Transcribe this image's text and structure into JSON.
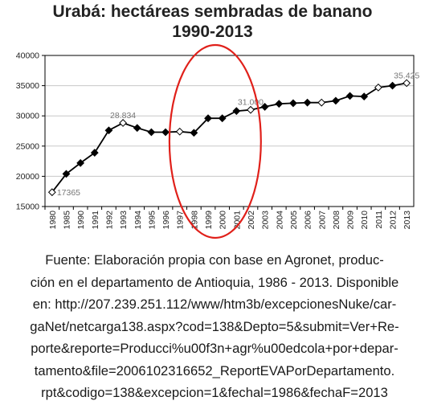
{
  "chart_data": {
    "type": "line",
    "title_lines": [
      "Urabá: hectáreas sembradas de banano",
      "1990-2013"
    ],
    "xlabel": "",
    "ylabel": "",
    "ylim": [
      15000,
      40000
    ],
    "yticks": [
      15000,
      20000,
      25000,
      30000,
      35000,
      40000
    ],
    "categories": [
      "1980",
      "1985",
      "1990",
      "1991",
      "1992",
      "1993",
      "1994",
      "1995",
      "1996",
      "1997",
      "1998",
      "1999",
      "2000",
      "2001",
      "2002",
      "2003",
      "2004",
      "2005",
      "2006",
      "2007",
      "2008",
      "2009",
      "2010",
      "2011",
      "2012",
      "2013"
    ],
    "series": [
      {
        "values": [
          17365,
          20400,
          22200,
          23900,
          27600,
          28834,
          28000,
          27300,
          27300,
          27400,
          27200,
          29600,
          29600,
          30800,
          31000,
          31500,
          32000,
          32100,
          32200,
          32200,
          32500,
          33300,
          33200,
          34700,
          35000,
          35425
        ]
      }
    ],
    "hollow_markers": [
      0,
      5,
      9,
      14,
      19,
      23,
      25
    ],
    "data_labels": [
      {
        "index": 0,
        "text": "17365"
      },
      {
        "index": 5,
        "text": "28.834"
      },
      {
        "index": 14,
        "text": "31.000"
      },
      {
        "index": 25,
        "text": "35.425"
      }
    ],
    "annotation": {
      "type": "ellipse",
      "color": "#e0201a",
      "from_category": "1997",
      "to_category": "2002"
    },
    "grid": true,
    "line_color": "#000000",
    "grid_color": "#c8c8c8",
    "label_color": "#777777"
  },
  "caption_lines": [
    "Fuente: Elaboración propia con base en Agronet, produc-",
    "ción en el departamento de Antioquia, 1986 - 2013. Disponible",
    "en: http://207.239.251.112/www/htm3b/excepcionesNuke/car-",
    "gaNet/netcarga138.aspx?cod=138&Depto=5&submit=Ver+Re-",
    "porte&reporte=Producci%u00f3n+agr%u00edcola+por+depar-",
    "tamento&file=2006102316652_ReportEVAPorDepartamento.",
    "rpt&codigo=138&excepcion=1&fechal=1986&fechaF=2013"
  ]
}
